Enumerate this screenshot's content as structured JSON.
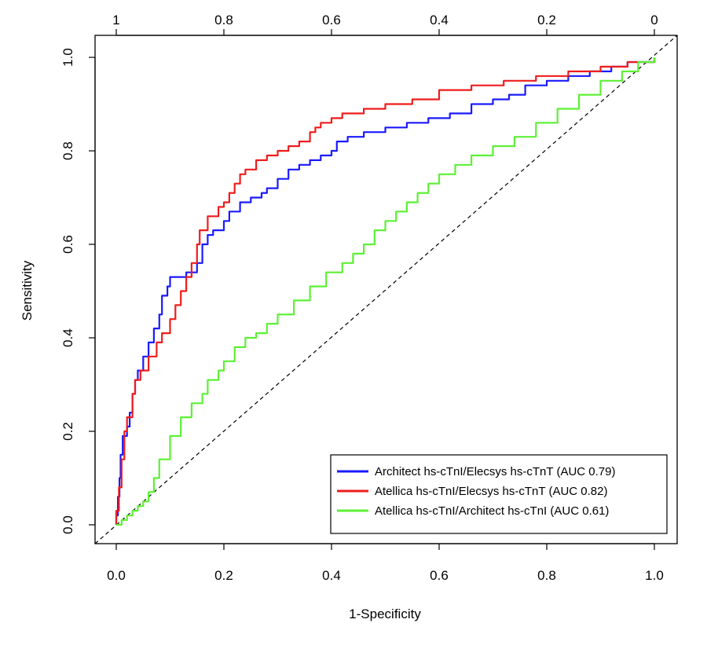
{
  "chart_data": {
    "type": "line",
    "title": "",
    "xlabel": "1-Specificity",
    "ylabel": "Sensitivity",
    "xlim": [
      0,
      1
    ],
    "ylim": [
      0,
      1
    ],
    "x_ticks": [
      "0.0",
      "0.2",
      "0.4",
      "0.6",
      "0.8",
      "1.0"
    ],
    "y_ticks": [
      "0.0",
      "0.2",
      "0.4",
      "0.6",
      "0.8",
      "1.0"
    ],
    "top_axis_ticks": [
      "1",
      "0.8",
      "0.6",
      "0.4",
      "0.2",
      "0"
    ],
    "grid": false,
    "legend_position": "bottom-right",
    "reference_line": {
      "style": "dashed",
      "color": "#000000",
      "from": [
        0,
        0
      ],
      "to": [
        1,
        1
      ]
    },
    "series": [
      {
        "name": "Architect hs-cTnI/Elecsys hs-cTnT (AUC 0.79)",
        "color": "#1a1aff",
        "points": [
          [
            0,
            0
          ],
          [
            0,
            0.02
          ],
          [
            0.003,
            0.06
          ],
          [
            0.006,
            0.1
          ],
          [
            0.008,
            0.15
          ],
          [
            0.012,
            0.19
          ],
          [
            0.02,
            0.21
          ],
          [
            0.025,
            0.24
          ],
          [
            0.03,
            0.28
          ],
          [
            0.035,
            0.31
          ],
          [
            0.04,
            0.33
          ],
          [
            0.05,
            0.36
          ],
          [
            0.06,
            0.39
          ],
          [
            0.07,
            0.42
          ],
          [
            0.08,
            0.45
          ],
          [
            0.085,
            0.49
          ],
          [
            0.095,
            0.51
          ],
          [
            0.1,
            0.53
          ],
          [
            0.13,
            0.54
          ],
          [
            0.15,
            0.56
          ],
          [
            0.16,
            0.6
          ],
          [
            0.17,
            0.62
          ],
          [
            0.18,
            0.63
          ],
          [
            0.2,
            0.65
          ],
          [
            0.21,
            0.67
          ],
          [
            0.23,
            0.69
          ],
          [
            0.25,
            0.7
          ],
          [
            0.27,
            0.71
          ],
          [
            0.28,
            0.72
          ],
          [
            0.3,
            0.74
          ],
          [
            0.32,
            0.76
          ],
          [
            0.34,
            0.77
          ],
          [
            0.36,
            0.78
          ],
          [
            0.38,
            0.79
          ],
          [
            0.4,
            0.8
          ],
          [
            0.41,
            0.82
          ],
          [
            0.43,
            0.83
          ],
          [
            0.46,
            0.84
          ],
          [
            0.5,
            0.85
          ],
          [
            0.54,
            0.86
          ],
          [
            0.58,
            0.87
          ],
          [
            0.62,
            0.88
          ],
          [
            0.66,
            0.9
          ],
          [
            0.7,
            0.91
          ],
          [
            0.73,
            0.92
          ],
          [
            0.76,
            0.94
          ],
          [
            0.8,
            0.95
          ],
          [
            0.84,
            0.96
          ],
          [
            0.88,
            0.97
          ],
          [
            0.92,
            0.98
          ],
          [
            0.95,
            0.99
          ],
          [
            1,
            1
          ]
        ]
      },
      {
        "name": "Atellica hs-cTnI/Elecsys hs-cTnT (AUC 0.82)",
        "color": "#ee1c1c",
        "points": [
          [
            0,
            0
          ],
          [
            0,
            0.03
          ],
          [
            0.005,
            0.08
          ],
          [
            0.01,
            0.14
          ],
          [
            0.015,
            0.2
          ],
          [
            0.02,
            0.23
          ],
          [
            0.03,
            0.28
          ],
          [
            0.035,
            0.31
          ],
          [
            0.045,
            0.33
          ],
          [
            0.06,
            0.36
          ],
          [
            0.075,
            0.39
          ],
          [
            0.085,
            0.41
          ],
          [
            0.1,
            0.44
          ],
          [
            0.11,
            0.47
          ],
          [
            0.12,
            0.5
          ],
          [
            0.13,
            0.53
          ],
          [
            0.14,
            0.56
          ],
          [
            0.15,
            0.6
          ],
          [
            0.155,
            0.63
          ],
          [
            0.17,
            0.66
          ],
          [
            0.19,
            0.68
          ],
          [
            0.2,
            0.69
          ],
          [
            0.21,
            0.71
          ],
          [
            0.22,
            0.73
          ],
          [
            0.23,
            0.75
          ],
          [
            0.24,
            0.76
          ],
          [
            0.26,
            0.78
          ],
          [
            0.28,
            0.79
          ],
          [
            0.3,
            0.8
          ],
          [
            0.32,
            0.81
          ],
          [
            0.34,
            0.82
          ],
          [
            0.36,
            0.84
          ],
          [
            0.37,
            0.85
          ],
          [
            0.38,
            0.86
          ],
          [
            0.4,
            0.87
          ],
          [
            0.42,
            0.88
          ],
          [
            0.46,
            0.89
          ],
          [
            0.5,
            0.9
          ],
          [
            0.55,
            0.91
          ],
          [
            0.6,
            0.93
          ],
          [
            0.66,
            0.94
          ],
          [
            0.72,
            0.95
          ],
          [
            0.78,
            0.96
          ],
          [
            0.84,
            0.97
          ],
          [
            0.9,
            0.98
          ],
          [
            0.95,
            0.99
          ],
          [
            1,
            1
          ]
        ]
      },
      {
        "name": "Atellica hs-cTnI/Architect hs-cTnI (AUC 0.61)",
        "color": "#5cf034",
        "points": [
          [
            0,
            0
          ],
          [
            0.01,
            0.01
          ],
          [
            0.02,
            0.02
          ],
          [
            0.03,
            0.03
          ],
          [
            0.04,
            0.04
          ],
          [
            0.05,
            0.05
          ],
          [
            0.06,
            0.07
          ],
          [
            0.07,
            0.1
          ],
          [
            0.08,
            0.14
          ],
          [
            0.1,
            0.19
          ],
          [
            0.12,
            0.23
          ],
          [
            0.14,
            0.26
          ],
          [
            0.16,
            0.28
          ],
          [
            0.17,
            0.31
          ],
          [
            0.19,
            0.33
          ],
          [
            0.2,
            0.35
          ],
          [
            0.22,
            0.38
          ],
          [
            0.24,
            0.4
          ],
          [
            0.26,
            0.41
          ],
          [
            0.28,
            0.43
          ],
          [
            0.3,
            0.45
          ],
          [
            0.33,
            0.48
          ],
          [
            0.36,
            0.51
          ],
          [
            0.39,
            0.54
          ],
          [
            0.42,
            0.56
          ],
          [
            0.44,
            0.58
          ],
          [
            0.46,
            0.6
          ],
          [
            0.48,
            0.63
          ],
          [
            0.5,
            0.65
          ],
          [
            0.52,
            0.67
          ],
          [
            0.54,
            0.69
          ],
          [
            0.56,
            0.71
          ],
          [
            0.58,
            0.73
          ],
          [
            0.6,
            0.75
          ],
          [
            0.63,
            0.77
          ],
          [
            0.66,
            0.79
          ],
          [
            0.7,
            0.81
          ],
          [
            0.74,
            0.83
          ],
          [
            0.78,
            0.86
          ],
          [
            0.82,
            0.89
          ],
          [
            0.86,
            0.92
          ],
          [
            0.9,
            0.95
          ],
          [
            0.94,
            0.97
          ],
          [
            0.97,
            0.99
          ],
          [
            1,
            1
          ]
        ]
      }
    ]
  }
}
